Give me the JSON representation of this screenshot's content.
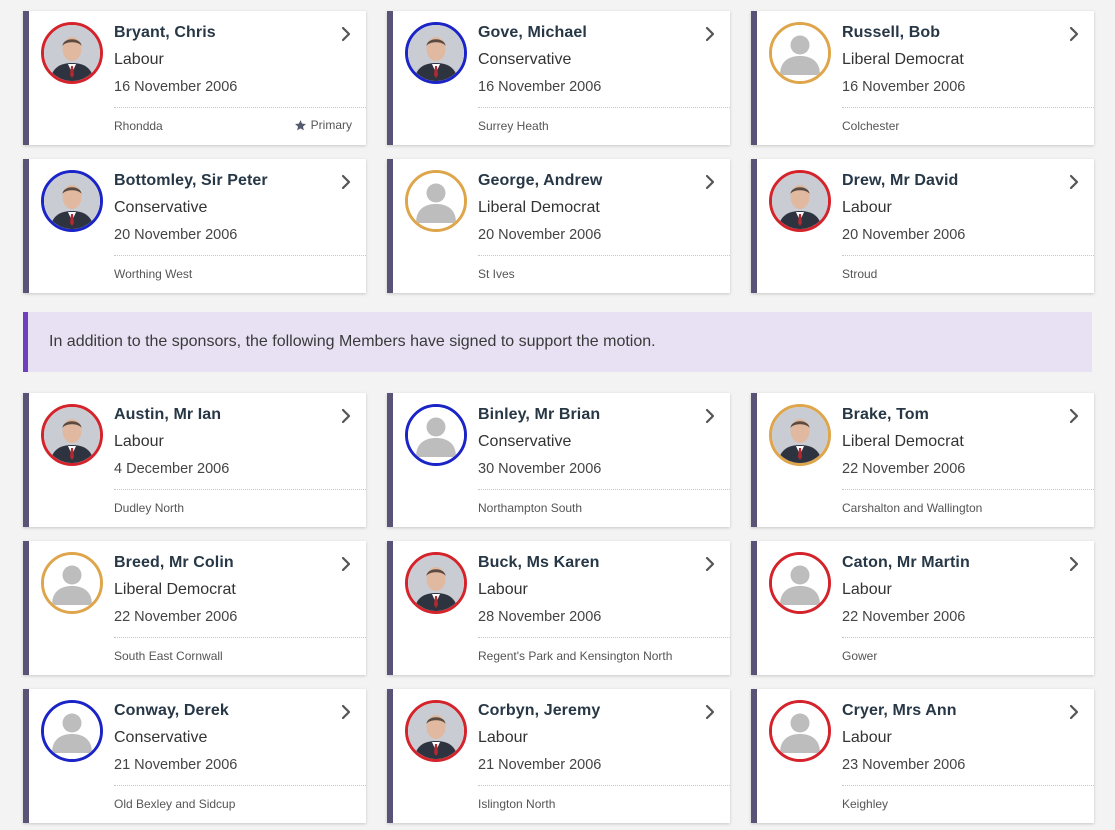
{
  "colors": {
    "labour": "#d4232b",
    "conservative": "#1b24c6",
    "libdem": "#dea54b",
    "card_accent": "#595378",
    "banner_bg": "#e8e0f3",
    "banner_accent": "#6f3fc0"
  },
  "sponsors": [
    {
      "name": "Bryant, Chris",
      "party": "Labour",
      "date": "16 November 2006",
      "constituency": "Rhondda",
      "primary_label": "Primary",
      "party_class": "labour",
      "photo": "photo"
    },
    {
      "name": "Gove, Michael",
      "party": "Conservative",
      "date": "16 November 2006",
      "constituency": "Surrey Heath",
      "party_class": "conservative",
      "photo": "photo"
    },
    {
      "name": "Russell, Bob",
      "party": "Liberal Democrat",
      "date": "16 November 2006",
      "constituency": "Colchester",
      "party_class": "libdem",
      "photo": "placeholder"
    },
    {
      "name": "Bottomley, Sir Peter",
      "party": "Conservative",
      "date": "20 November 2006",
      "constituency": "Worthing West",
      "party_class": "conservative",
      "photo": "photo"
    },
    {
      "name": "George, Andrew",
      "party": "Liberal Democrat",
      "date": "20 November 2006",
      "constituency": "St Ives",
      "party_class": "libdem",
      "photo": "placeholder"
    },
    {
      "name": "Drew, Mr David",
      "party": "Labour",
      "date": "20 November 2006",
      "constituency": "Stroud",
      "party_class": "labour",
      "photo": "photo"
    }
  ],
  "banner": {
    "text": "In addition to the sponsors, the following Members have signed to support the motion."
  },
  "signers": [
    {
      "name": "Austin, Mr Ian",
      "party": "Labour",
      "date": "4 December 2006",
      "constituency": "Dudley North",
      "party_class": "labour",
      "photo": "photo"
    },
    {
      "name": "Binley, Mr Brian",
      "party": "Conservative",
      "date": "30 November 2006",
      "constituency": "Northampton South",
      "party_class": "conservative",
      "photo": "placeholder"
    },
    {
      "name": "Brake, Tom",
      "party": "Liberal Democrat",
      "date": "22 November 2006",
      "constituency": "Carshalton and Wallington",
      "party_class": "libdem",
      "photo": "photo"
    },
    {
      "name": "Breed, Mr Colin",
      "party": "Liberal Democrat",
      "date": "22 November 2006",
      "constituency": "South East Cornwall",
      "party_class": "libdem",
      "photo": "placeholder"
    },
    {
      "name": "Buck, Ms Karen",
      "party": "Labour",
      "date": "28 November 2006",
      "constituency": "Regent's Park and Kensington North",
      "party_class": "labour",
      "photo": "photo"
    },
    {
      "name": "Caton, Mr Martin",
      "party": "Labour",
      "date": "22 November 2006",
      "constituency": "Gower",
      "party_class": "labour",
      "photo": "placeholder"
    },
    {
      "name": "Conway, Derek",
      "party": "Conservative",
      "date": "21 November 2006",
      "constituency": "Old Bexley and Sidcup",
      "party_class": "conservative",
      "photo": "placeholder"
    },
    {
      "name": "Corbyn, Jeremy",
      "party": "Labour",
      "date": "21 November 2006",
      "constituency": "Islington North",
      "party_class": "labour",
      "photo": "photo"
    },
    {
      "name": "Cryer, Mrs Ann",
      "party": "Labour",
      "date": "23 November 2006",
      "constituency": "Keighley",
      "party_class": "labour",
      "photo": "placeholder"
    }
  ]
}
